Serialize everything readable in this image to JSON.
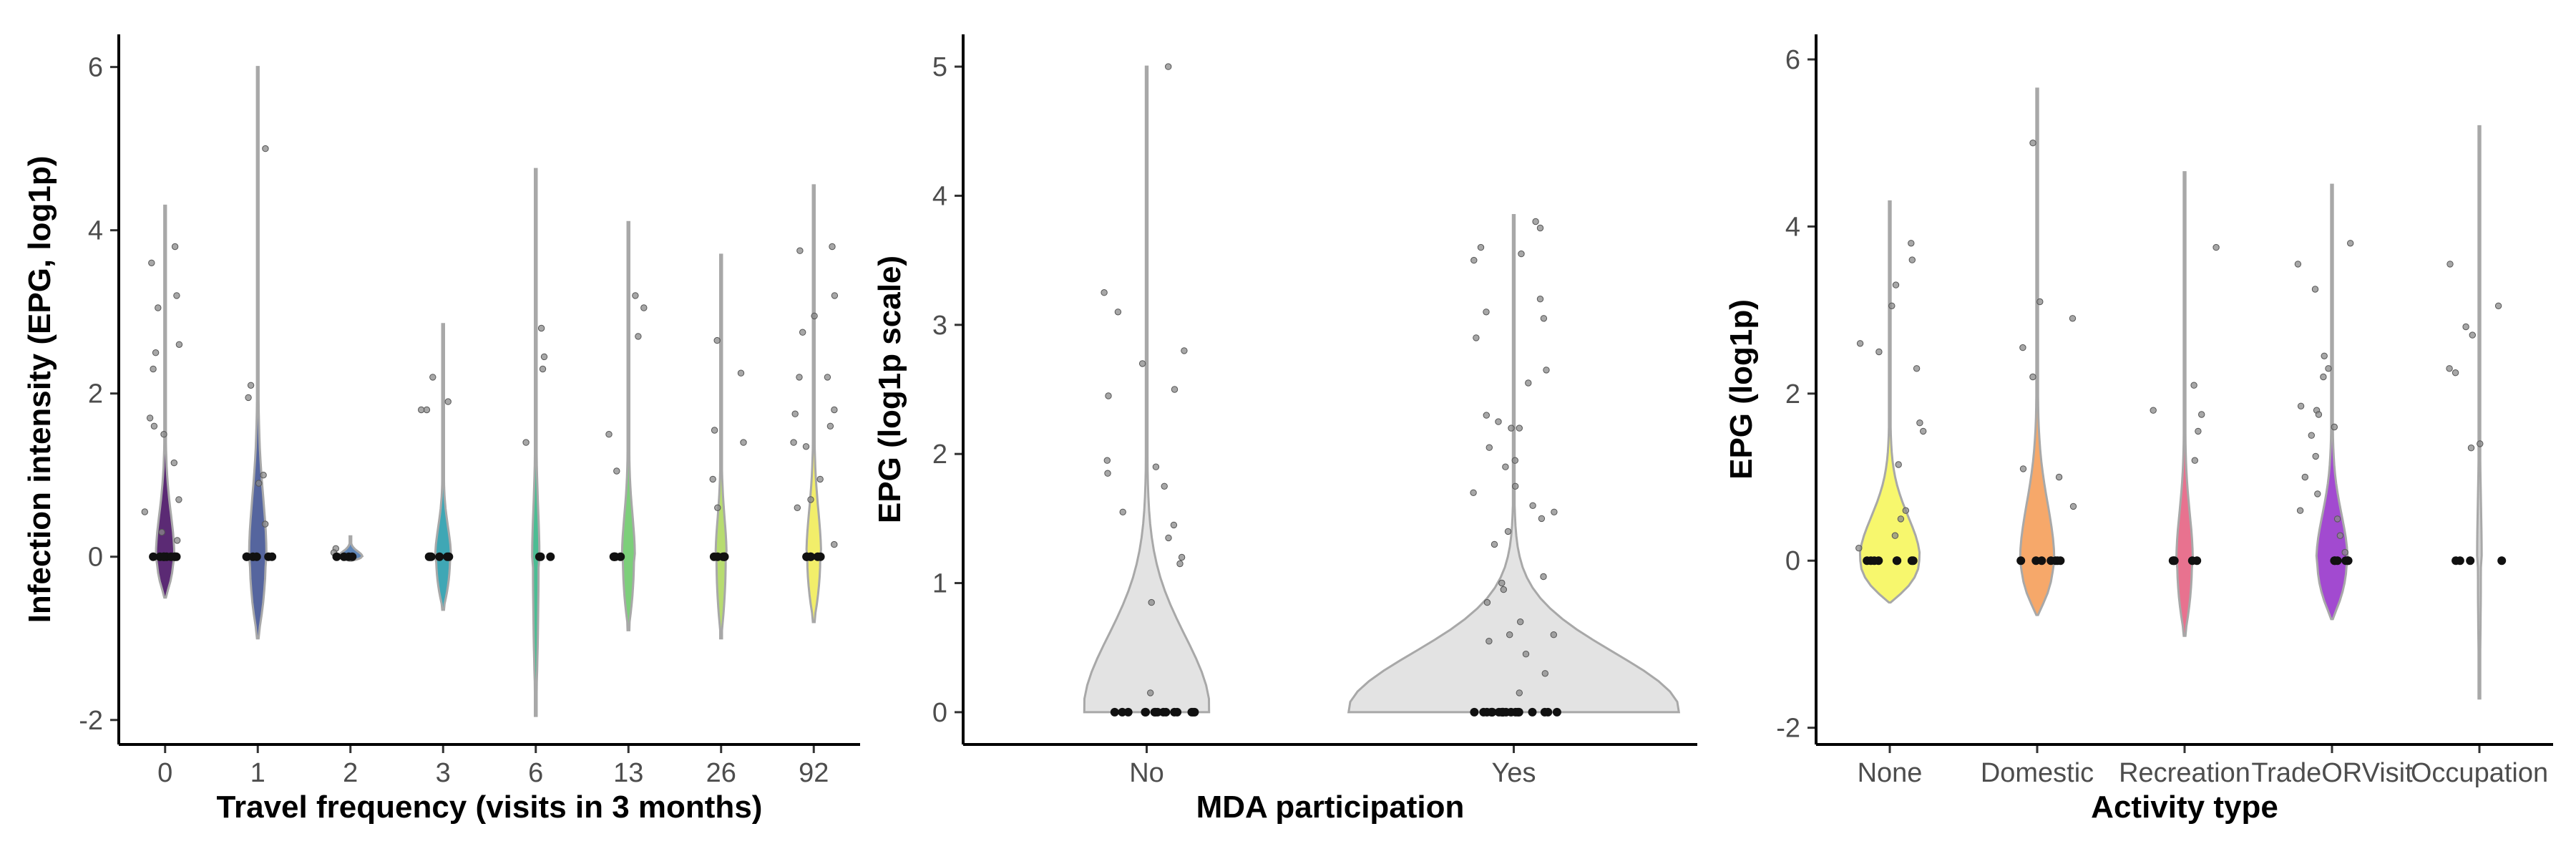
{
  "chart_data": [
    {
      "type": "violin",
      "xlabel": "Travel frequency (visits in 3 months)",
      "ylabel": "Infection intensity (EPG, log1p)",
      "ylim": [
        -2.3,
        6.4
      ],
      "yticks": [
        "-2",
        "0",
        "2",
        "4",
        "6"
      ],
      "ytick_values": [
        -2,
        0,
        2,
        4,
        6
      ],
      "categories": [
        "0",
        "1",
        "2",
        "3",
        "6",
        "13",
        "26",
        "92"
      ],
      "fill_colors": [
        "#5b2a74",
        "#55659e",
        "#5f86b8",
        "#3fa7b5",
        "#4bbd93",
        "#7ccf7a",
        "#b7dc70",
        "#f2ee6a"
      ],
      "violin_range": [
        [
          -0.5,
          4.3
        ],
        [
          -1.0,
          6.0
        ],
        [
          -0.05,
          0.25
        ],
        [
          -0.65,
          2.85
        ],
        [
          -1.95,
          4.75
        ],
        [
          -0.9,
          4.1
        ],
        [
          -1.0,
          3.7
        ],
        [
          -0.8,
          4.55
        ]
      ],
      "violin_halfwidth": [
        0.09,
        0.085,
        0.12,
        0.075,
        0.03,
        0.06,
        0.05,
        0.07
      ],
      "points": [
        [
          3.8,
          3.6,
          3.2,
          3.05,
          2.6,
          2.5,
          2.3,
          1.7,
          1.6,
          1.5,
          1.15,
          0.7,
          0.55,
          0.3,
          0.2,
          0,
          0,
          0,
          0,
          0,
          0,
          0,
          0,
          0
        ],
        [
          5.0,
          2.1,
          1.95,
          1.0,
          0.9,
          0.4,
          0,
          0,
          0,
          0,
          0,
          0
        ],
        [
          0.1,
          0.05,
          0,
          0,
          0,
          0
        ],
        [
          2.2,
          1.9,
          1.8,
          1.8,
          0,
          0,
          0,
          0,
          0,
          0
        ],
        [
          2.8,
          2.45,
          2.3,
          1.4,
          0,
          0,
          0
        ],
        [
          3.2,
          3.05,
          2.7,
          1.5,
          1.05,
          0,
          0,
          0,
          0,
          0
        ],
        [
          2.65,
          2.25,
          1.55,
          1.4,
          0.95,
          0.6,
          0,
          0,
          0,
          0,
          0
        ],
        [
          3.8,
          3.75,
          3.2,
          2.95,
          2.75,
          2.2,
          2.2,
          1.8,
          1.75,
          1.6,
          1.4,
          1.35,
          0.95,
          0.7,
          0.6,
          0.15,
          0,
          0,
          0,
          0,
          0,
          0
        ]
      ]
    },
    {
      "type": "violin",
      "xlabel": "MDA participation",
      "ylabel": "EPG (log1p scale)",
      "ylim": [
        -0.25,
        5.25
      ],
      "yticks": [
        "0",
        "1",
        "2",
        "3",
        "4",
        "5"
      ],
      "ytick_values": [
        0,
        1,
        2,
        3,
        4,
        5
      ],
      "categories": [
        "No",
        "Yes"
      ],
      "fill_colors": [
        "#e3e3e3",
        "#e3e3e3"
      ],
      "violin_range": [
        [
          0,
          5.0
        ],
        [
          0,
          3.85
        ]
      ],
      "violin_halfwidth": [
        0.17,
        0.45
      ],
      "points": [
        [
          5.0,
          3.25,
          3.1,
          2.8,
          2.7,
          2.5,
          2.45,
          1.95,
          1.9,
          1.85,
          1.75,
          1.55,
          1.45,
          1.35,
          1.2,
          1.15,
          0.85,
          0.15,
          0,
          0,
          0,
          0,
          0,
          0,
          0,
          0,
          0,
          0,
          0,
          0,
          0,
          0,
          0
        ],
        [
          3.8,
          3.75,
          3.6,
          3.55,
          3.5,
          3.2,
          3.1,
          3.05,
          2.9,
          2.65,
          2.55,
          2.3,
          2.25,
          2.2,
          2.2,
          2.05,
          1.95,
          1.9,
          1.75,
          1.7,
          1.6,
          1.55,
          1.5,
          1.4,
          1.3,
          1.05,
          1.0,
          0.95,
          0.85,
          0.7,
          0.6,
          0.6,
          0.55,
          0.45,
          0.3,
          0.15,
          0,
          0,
          0,
          0,
          0,
          0,
          0,
          0,
          0,
          0,
          0,
          0,
          0,
          0,
          0,
          0,
          0,
          0,
          0,
          0
        ]
      ]
    },
    {
      "type": "violin",
      "xlabel": "Activity type",
      "ylabel": "EPG (log1p)",
      "ylim": [
        -2.2,
        6.3
      ],
      "yticks": [
        "-2",
        "0",
        "2",
        "4",
        "6"
      ],
      "ytick_values": [
        -2,
        0,
        2,
        4,
        6
      ],
      "categories": [
        "None",
        "Domestic",
        "Recreation",
        "TradeORVisit",
        "Occupation"
      ],
      "fill_colors": [
        "#f7f76d",
        "#f6a86a",
        "#e8728f",
        "#a24ad0",
        "#d2d2d2"
      ],
      "violin_range": [
        [
          -0.5,
          4.3
        ],
        [
          -0.65,
          5.65
        ],
        [
          -0.9,
          4.65
        ],
        [
          -0.7,
          4.5
        ],
        [
          -1.65,
          5.2
        ]
      ],
      "violin_halfwidth": [
        0.2,
        0.11,
        0.05,
        0.1,
        0.01
      ],
      "points": [
        [
          3.8,
          3.6,
          3.3,
          3.05,
          2.6,
          2.5,
          2.3,
          1.65,
          1.55,
          1.15,
          0.6,
          0.5,
          0.3,
          0.15,
          0,
          0,
          0,
          0,
          0,
          0,
          0,
          0
        ],
        [
          5.0,
          3.1,
          2.9,
          2.55,
          2.2,
          1.1,
          1.0,
          0.65,
          0,
          0,
          0,
          0,
          0,
          0,
          0
        ],
        [
          3.75,
          2.1,
          1.8,
          1.75,
          1.55,
          1.2,
          0,
          0,
          0,
          0,
          0
        ],
        [
          3.8,
          3.55,
          3.25,
          2.45,
          2.3,
          2.2,
          1.85,
          1.8,
          1.75,
          1.6,
          1.5,
          1.25,
          1.0,
          0.8,
          0.6,
          0.5,
          0.3,
          0.1,
          0,
          0,
          0,
          0,
          0,
          0
        ],
        [
          3.55,
          3.05,
          2.8,
          2.7,
          2.3,
          2.25,
          1.4,
          1.35,
          0,
          0,
          0,
          0
        ]
      ]
    }
  ]
}
